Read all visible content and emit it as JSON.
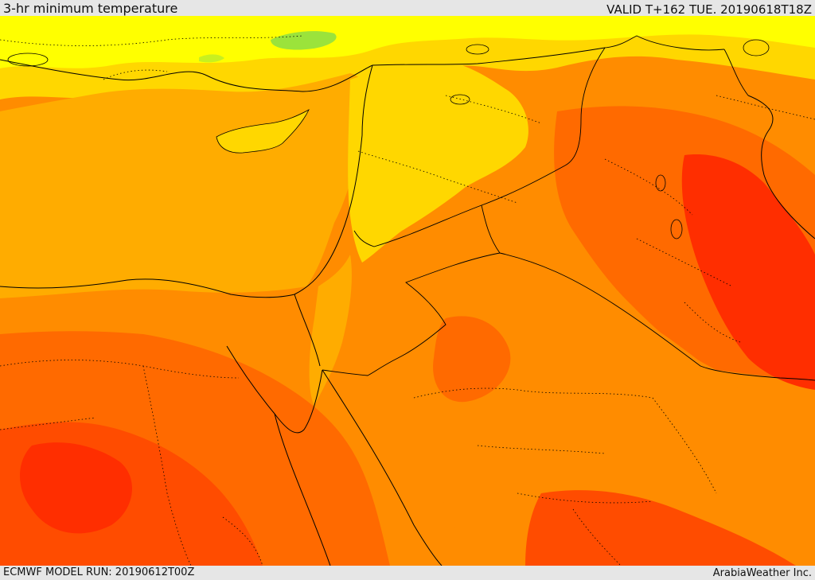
{
  "header": {
    "title": "3-hr minimum temperature",
    "valid": "VALID T+162 TUE. 20190618T18Z"
  },
  "footer": {
    "model_run": "ECMWF MODEL RUN: 20190612T00Z",
    "credit": "ArabiaWeather Inc."
  },
  "legend_colors": {
    "coolest": "#9be33b",
    "cool": "#c8f020",
    "mild": "#ffff00",
    "warm": "#ffd700",
    "warmer": "#ffac00",
    "hot": "#ff8c00",
    "hotter": "#ff6a00",
    "very_hot": "#ff4c00",
    "hottest": "#ff2e00"
  },
  "map": {
    "boundary_color": "#000000",
    "contour_style": "dotted administrative borders, solid national borders and coastlines"
  }
}
